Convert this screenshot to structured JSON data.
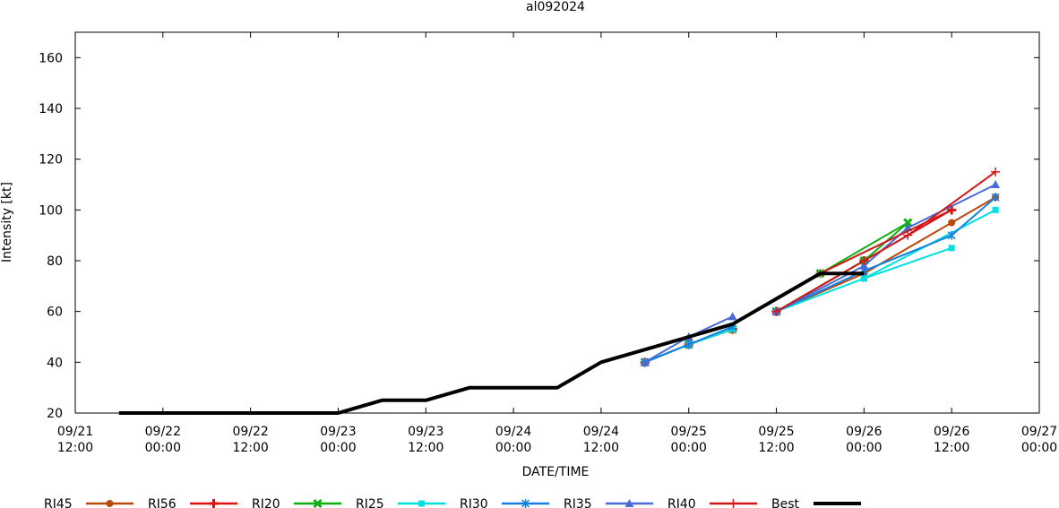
{
  "chart_data": {
    "type": "line",
    "title": "al092024",
    "xlabel": "DATE/TIME",
    "ylabel": "Intensity [kt]",
    "ylim": [
      20,
      170
    ],
    "yticks": [
      20,
      40,
      60,
      80,
      100,
      120,
      140,
      160
    ],
    "xlim": [
      "2024-09-21 12:00",
      "2024-09-27 00:00"
    ],
    "xticks": [
      {
        "date": "2024-09-21 12:00",
        "line1": "09/21",
        "line2": "12:00"
      },
      {
        "date": "2024-09-22 00:00",
        "line1": "09/22",
        "line2": "00:00"
      },
      {
        "date": "2024-09-22 12:00",
        "line1": "09/22",
        "line2": "12:00"
      },
      {
        "date": "2024-09-23 00:00",
        "line1": "09/23",
        "line2": "00:00"
      },
      {
        "date": "2024-09-23 12:00",
        "line1": "09/23",
        "line2": "12:00"
      },
      {
        "date": "2024-09-24 00:00",
        "line1": "09/24",
        "line2": "00:00"
      },
      {
        "date": "2024-09-24 12:00",
        "line1": "09/24",
        "line2": "12:00"
      },
      {
        "date": "2024-09-25 00:00",
        "line1": "09/25",
        "line2": "00:00"
      },
      {
        "date": "2024-09-25 12:00",
        "line1": "09/25",
        "line2": "12:00"
      },
      {
        "date": "2024-09-26 00:00",
        "line1": "09/26",
        "line2": "00:00"
      },
      {
        "date": "2024-09-26 12:00",
        "line1": "09/26",
        "line2": "12:00"
      },
      {
        "date": "2024-09-27 00:00",
        "line1": "09/27",
        "line2": "00:00"
      }
    ],
    "grid": false,
    "legend_position": "bottom",
    "series": [
      {
        "name": "RI45",
        "color": "#b94a0c",
        "marker": "circle",
        "segments": [
          [
            {
              "x": "2024-09-24 18:00",
              "y": 40
            },
            {
              "x": "2024-09-25 00:00",
              "y": 47
            },
            {
              "x": "2024-09-25 06:00",
              "y": 53
            }
          ],
          [
            {
              "x": "2024-09-25 12:00",
              "y": 60
            },
            {
              "x": "2024-09-26 00:00",
              "y": 75
            },
            {
              "x": "2024-09-26 12:00",
              "y": 95
            },
            {
              "x": "2024-09-26 18:00",
              "y": 105
            }
          ]
        ]
      },
      {
        "name": "RI56",
        "color": "#e01010",
        "marker": "plus-bold",
        "segments": [
          [
            {
              "x": "2024-09-24 18:00",
              "y": 40
            },
            {
              "x": "2024-09-25 00:00",
              "y": 47
            },
            {
              "x": "2024-09-25 06:00",
              "y": 53
            }
          ],
          [
            {
              "x": "2024-09-25 12:00",
              "y": 60
            },
            {
              "x": "2024-09-26 00:00",
              "y": 80
            },
            {
              "x": "2024-09-26 12:00",
              "y": 100
            }
          ]
        ]
      },
      {
        "name": "RI20",
        "color": "#10b010",
        "marker": "x-bold",
        "segments": [
          [
            {
              "x": "2024-09-24 18:00",
              "y": 40
            },
            {
              "x": "2024-09-25 00:00",
              "y": 47
            },
            {
              "x": "2024-09-25 06:00",
              "y": 53
            }
          ],
          [
            {
              "x": "2024-09-25 12:00",
              "y": 60
            },
            {
              "x": "2024-09-26 00:00",
              "y": 80
            },
            {
              "x": "2024-09-26 06:00",
              "y": 95
            }
          ],
          [
            {
              "x": "2024-09-25 18:00",
              "y": 75
            },
            {
              "x": "2024-09-26 06:00",
              "y": 95
            }
          ]
        ]
      },
      {
        "name": "RI25",
        "color": "#00e0e0",
        "marker": "square",
        "segments": [
          [
            {
              "x": "2024-09-24 18:00",
              "y": 40
            },
            {
              "x": "2024-09-25 00:00",
              "y": 47
            },
            {
              "x": "2024-09-25 06:00",
              "y": 53
            }
          ],
          [
            {
              "x": "2024-09-25 12:00",
              "y": 60
            },
            {
              "x": "2024-09-26 00:00",
              "y": 73
            },
            {
              "x": "2024-09-26 12:00",
              "y": 85
            }
          ],
          [
            {
              "x": "2024-09-26 00:00",
              "y": 73
            },
            {
              "x": "2024-09-26 18:00",
              "y": 100
            }
          ]
        ]
      },
      {
        "name": "RI30",
        "color": "#1480e0",
        "marker": "asterisk",
        "segments": [
          [
            {
              "x": "2024-09-24 18:00",
              "y": 40
            },
            {
              "x": "2024-09-25 00:00",
              "y": 47
            },
            {
              "x": "2024-09-25 06:00",
              "y": 54
            }
          ],
          [
            {
              "x": "2024-09-25 12:00",
              "y": 60
            },
            {
              "x": "2024-09-26 00:00",
              "y": 76
            },
            {
              "x": "2024-09-26 12:00",
              "y": 90
            },
            {
              "x": "2024-09-26 18:00",
              "y": 105
            }
          ]
        ]
      },
      {
        "name": "RI35",
        "color": "#4a6ad8",
        "marker": "triangle",
        "segments": [
          [
            {
              "x": "2024-09-24 18:00",
              "y": 40
            },
            {
              "x": "2024-09-25 00:00",
              "y": 50
            },
            {
              "x": "2024-09-25 06:00",
              "y": 58
            }
          ],
          [
            {
              "x": "2024-09-25 12:00",
              "y": 60
            },
            {
              "x": "2024-09-26 00:00",
              "y": 78
            },
            {
              "x": "2024-09-26 06:00",
              "y": 93
            },
            {
              "x": "2024-09-26 18:00",
              "y": 110
            }
          ]
        ]
      },
      {
        "name": "RI40",
        "color": "#d01818",
        "marker": "plus",
        "segments": [
          [
            {
              "x": "2024-09-25 12:00",
              "y": 60
            },
            {
              "x": "2024-09-26 00:00",
              "y": 80
            },
            {
              "x": "2024-09-26 06:00",
              "y": 90
            },
            {
              "x": "2024-09-26 18:00",
              "y": 115
            }
          ],
          [
            {
              "x": "2024-09-25 18:00",
              "y": 75
            },
            {
              "x": "2024-09-26 12:00",
              "y": 100
            }
          ]
        ]
      },
      {
        "name": "Best",
        "color": "#000000",
        "marker": "none",
        "bold": true,
        "segments": [
          [
            {
              "x": "2024-09-21 18:00",
              "y": 20
            },
            {
              "x": "2024-09-22 00:00",
              "y": 20
            },
            {
              "x": "2024-09-22 06:00",
              "y": 20
            },
            {
              "x": "2024-09-22 12:00",
              "y": 20
            },
            {
              "x": "2024-09-22 18:00",
              "y": 20
            },
            {
              "x": "2024-09-23 00:00",
              "y": 20
            },
            {
              "x": "2024-09-23 06:00",
              "y": 25
            },
            {
              "x": "2024-09-23 12:00",
              "y": 25
            },
            {
              "x": "2024-09-23 18:00",
              "y": 30
            },
            {
              "x": "2024-09-24 00:00",
              "y": 30
            },
            {
              "x": "2024-09-24 06:00",
              "y": 30
            },
            {
              "x": "2024-09-24 12:00",
              "y": 40
            },
            {
              "x": "2024-09-24 18:00",
              "y": 45
            },
            {
              "x": "2024-09-25 00:00",
              "y": 50
            },
            {
              "x": "2024-09-25 06:00",
              "y": 55
            },
            {
              "x": "2024-09-25 12:00",
              "y": 65
            },
            {
              "x": "2024-09-25 18:00",
              "y": 75
            },
            {
              "x": "2024-09-26 00:00",
              "y": 75
            }
          ]
        ]
      }
    ]
  }
}
